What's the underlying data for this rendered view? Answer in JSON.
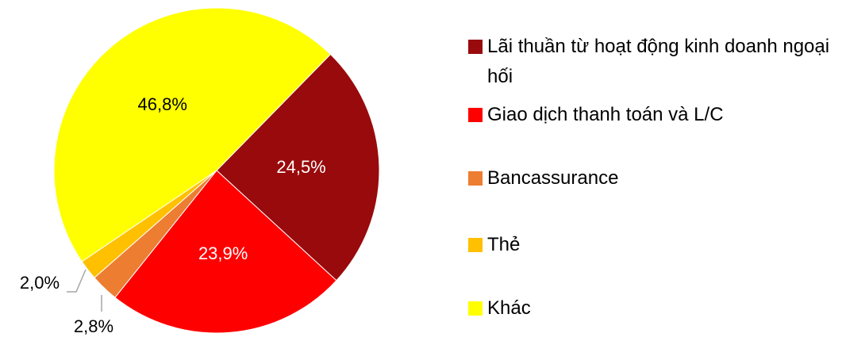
{
  "chart_data": {
    "type": "pie",
    "categories": [
      "Lãi thuần từ hoạt động kinh doanh ngoại hối",
      "Giao dịch thanh toán và L/C",
      "Bancassurance",
      "Thẻ",
      "Khác"
    ],
    "values": [
      24.5,
      23.9,
      2.8,
      2.0,
      46.8
    ],
    "value_labels": [
      "24,5%",
      "23,9%",
      "2,8%",
      "2,0%",
      "46,8%"
    ],
    "colors": [
      "#990a0c",
      "#ff0000",
      "#ed7d31",
      "#ffc000",
      "#ffff00"
    ],
    "legend": "right"
  }
}
